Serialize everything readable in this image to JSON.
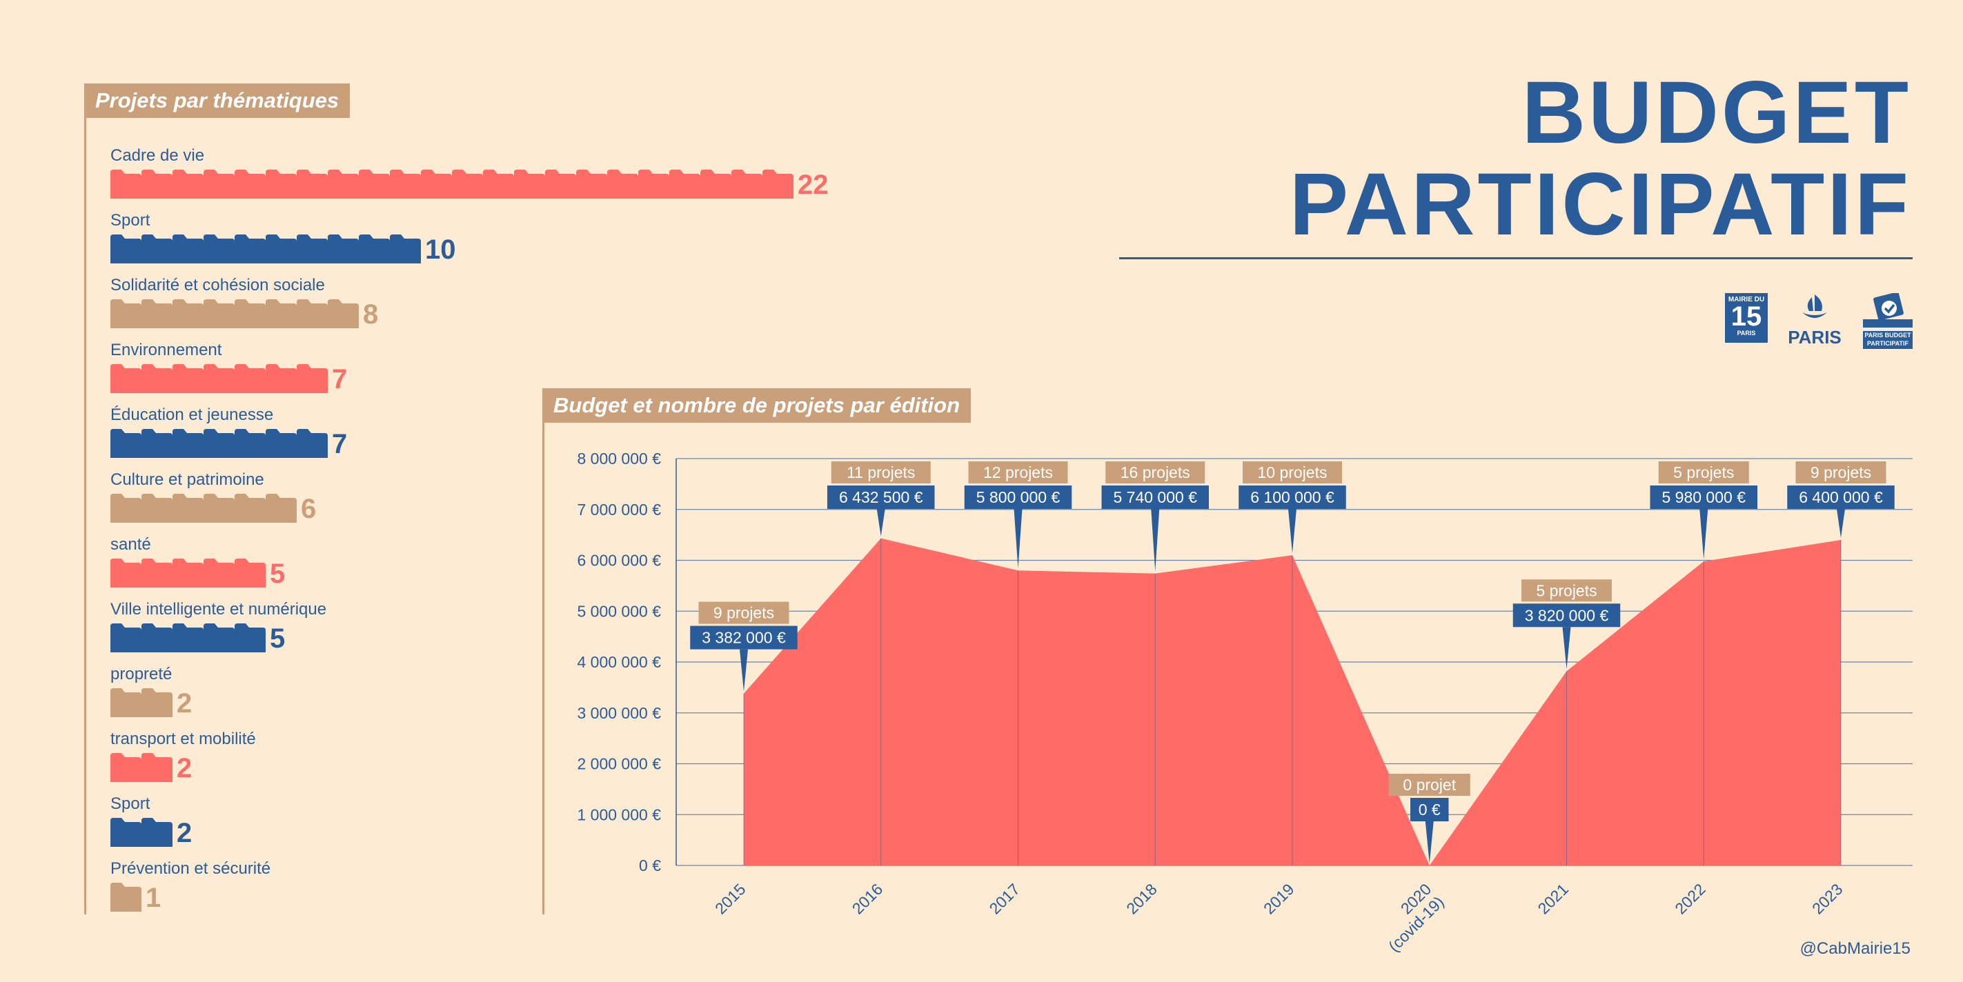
{
  "title": {
    "line1": "BUDGET",
    "line2": "PARTICIPATIF"
  },
  "thematiques": {
    "heading": "Projets par thématiques",
    "items": [
      {
        "label": "Cadre de vie",
        "count": 22,
        "color": "#ff6b66"
      },
      {
        "label": "Sport",
        "count": 10,
        "color": "#2b5c9a"
      },
      {
        "label": "Solidarité et cohésion sociale",
        "count": 8,
        "color": "#c9a07a"
      },
      {
        "label": "Environnement",
        "count": 7,
        "color": "#ff6b66"
      },
      {
        "label": "Éducation et jeunesse",
        "count": 7,
        "color": "#2b5c9a"
      },
      {
        "label": "Culture et patrimoine",
        "count": 6,
        "color": "#c9a07a"
      },
      {
        "label": "santé",
        "count": 5,
        "color": "#ff6b66"
      },
      {
        "label": "Ville intelligente et numérique",
        "count": 5,
        "color": "#2b5c9a"
      },
      {
        "label": "propreté",
        "count": 2,
        "color": "#c9a07a"
      },
      {
        "label": "transport et mobilité",
        "count": 2,
        "color": "#ff6b66"
      },
      {
        "label": "Sport",
        "count": 2,
        "color": "#2b5c9a"
      },
      {
        "label": "Prévention et sécurité",
        "count": 1,
        "color": "#c9a07a"
      }
    ]
  },
  "logos": {
    "mairie": {
      "top": "MAIRIE DU",
      "number": "15",
      "bottom": "PARIS",
      "icon": "mairie-15-logo"
    },
    "paris": {
      "label": "PARIS",
      "icon": "paris-boat-logo"
    },
    "budget": {
      "line1": "PARIS BUDGET",
      "line2": "PARTICIPATIF",
      "icon": "ballot-box-logo"
    }
  },
  "handle": "@CabMairie15",
  "chart_data": {
    "type": "area",
    "title": "Budget et nombre de projets par édition",
    "x": [
      "2015",
      "2016",
      "2017",
      "2018",
      "2019",
      "2020\n(covid-19)",
      "2021",
      "2022",
      "2023"
    ],
    "series": [
      {
        "values": [
          3382000,
          6432500,
          5800000,
          5740000,
          6100000,
          0,
          3820000,
          5980000,
          6400000
        ],
        "color": "#ff6b66"
      }
    ],
    "value_labels": [
      "3 382 000 €",
      "6 432 500 €",
      "5 800 000 €",
      "5 740 000 €",
      "6 100 000 €",
      "0 €",
      "3 820 000 €",
      "5 980 000 €",
      "6 400 000 €"
    ],
    "project_labels": [
      "9 projets",
      "11 projets",
      "12 projets",
      "16 projets",
      "10 projets",
      "0 projet",
      "5 projets",
      "5 projets",
      "9 projets"
    ],
    "label_raised": [
      false,
      true,
      true,
      true,
      true,
      false,
      false,
      true,
      true
    ],
    "y_ticks": [
      "0 €",
      "1 000 000 €",
      "2 000 000 €",
      "3 000 000 €",
      "4 000 000 €",
      "5 000 000 €",
      "6 000 000 €",
      "7 000 000 €",
      "8 000 000 €"
    ],
    "ylim": [
      0,
      8000000
    ],
    "grid": true
  },
  "colors": {
    "blue": "#2b5c9a",
    "coral": "#ff6b66",
    "tan": "#c9a07a",
    "background": "#fdebd3"
  }
}
